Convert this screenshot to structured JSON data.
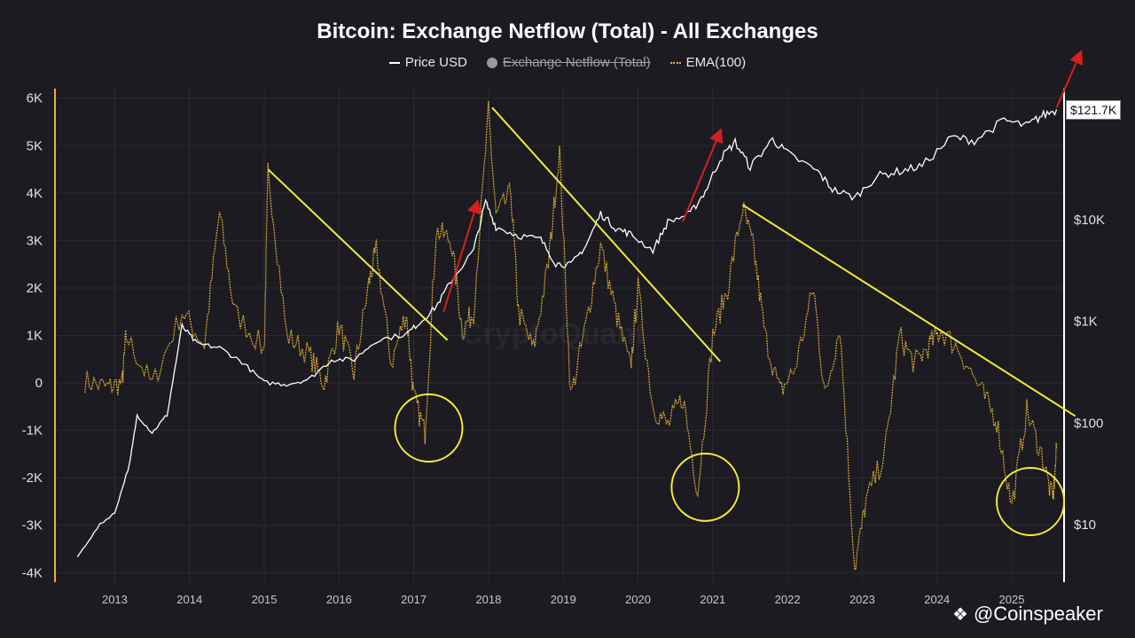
{
  "chart_data": {
    "type": "line",
    "title": "Bitcoin: Exchange Netflow (Total) - All Exchanges",
    "legend": [
      {
        "label": "Price USD",
        "style": "line",
        "color": "#ffffff",
        "hidden": false
      },
      {
        "label": "Exchange Netflow (Total)",
        "style": "dot",
        "color": "#9a9a9a",
        "hidden": true
      },
      {
        "label": "EMA(100)",
        "style": "dotted-line",
        "color": "#e2b33b",
        "hidden": false
      }
    ],
    "legend_position": "top-center",
    "x_axis": {
      "type": "date",
      "range": [
        2012.2,
        2025.7
      ],
      "ticks": [
        "2013",
        "2014",
        "2015",
        "2016",
        "2017",
        "2018",
        "2019",
        "2020",
        "2021",
        "2022",
        "2023",
        "2024",
        "2025"
      ]
    },
    "y_left": {
      "range": [
        -4200,
        6200
      ],
      "ticks": [
        "6K",
        "5K",
        "4K",
        "3K",
        "2K",
        "1K",
        "0",
        "-1K",
        "-2K",
        "-3K",
        "-4K"
      ],
      "tick_values": [
        6000,
        5000,
        4000,
        3000,
        2000,
        1000,
        0,
        -1000,
        -2000,
        -3000,
        -4000
      ]
    },
    "y_right": {
      "scale": "log",
      "ticks": [
        "$10K",
        "$1K",
        "$100",
        "$10"
      ],
      "tick_values": [
        10000,
        1000,
        100,
        10
      ]
    },
    "current_price_label": "$121.7K",
    "grid": true,
    "series": [
      {
        "name": "Price USD",
        "color": "#ffffff",
        "axis": "right",
        "points": [
          [
            2012.5,
            4.8
          ],
          [
            2012.8,
            10
          ],
          [
            2013.0,
            13
          ],
          [
            2013.2,
            40
          ],
          [
            2013.3,
            120
          ],
          [
            2013.5,
            80
          ],
          [
            2013.7,
            120
          ],
          [
            2013.9,
            900
          ],
          [
            2014.1,
            600
          ],
          [
            2014.4,
            550
          ],
          [
            2014.7,
            400
          ],
          [
            2015.0,
            250
          ],
          [
            2015.3,
            240
          ],
          [
            2015.6,
            270
          ],
          [
            2015.9,
            420
          ],
          [
            2016.2,
            420
          ],
          [
            2016.5,
            650
          ],
          [
            2016.9,
            750
          ],
          [
            2017.1,
            1000
          ],
          [
            2017.3,
            1400
          ],
          [
            2017.5,
            2500
          ],
          [
            2017.8,
            5000
          ],
          [
            2017.96,
            15000
          ],
          [
            2018.1,
            8500
          ],
          [
            2018.4,
            7000
          ],
          [
            2018.7,
            6400
          ],
          [
            2018.9,
            3700
          ],
          [
            2019.1,
            3600
          ],
          [
            2019.3,
            5500
          ],
          [
            2019.5,
            11500
          ],
          [
            2019.7,
            8300
          ],
          [
            2019.9,
            7200
          ],
          [
            2020.2,
            5000
          ],
          [
            2020.4,
            9500
          ],
          [
            2020.7,
            11500
          ],
          [
            2020.9,
            19000
          ],
          [
            2021.1,
            40000
          ],
          [
            2021.3,
            58000
          ],
          [
            2021.5,
            33000
          ],
          [
            2021.8,
            62000
          ],
          [
            2022.0,
            45000
          ],
          [
            2022.4,
            30000
          ],
          [
            2022.6,
            20000
          ],
          [
            2022.9,
            16500
          ],
          [
            2023.2,
            27000
          ],
          [
            2023.5,
            30000
          ],
          [
            2023.8,
            34000
          ],
          [
            2024.2,
            65000
          ],
          [
            2024.5,
            60000
          ],
          [
            2024.9,
            95000
          ],
          [
            2025.2,
            84000
          ],
          [
            2025.4,
            105000
          ],
          [
            2025.6,
            121700
          ]
        ]
      },
      {
        "name": "EMA(100)",
        "color": "#e2b33b",
        "axis": "left",
        "points": [
          [
            2012.6,
            50
          ],
          [
            2012.9,
            -100
          ],
          [
            2013.1,
            0
          ],
          [
            2013.15,
            1000
          ],
          [
            2013.5,
            -50
          ],
          [
            2013.9,
            1500
          ],
          [
            2014.2,
            800
          ],
          [
            2014.4,
            3600
          ],
          [
            2014.6,
            1500
          ],
          [
            2015.0,
            700
          ],
          [
            2015.05,
            4500
          ],
          [
            2015.3,
            1000
          ],
          [
            2015.6,
            600
          ],
          [
            2015.8,
            0
          ],
          [
            2016.0,
            1200
          ],
          [
            2016.2,
            200
          ],
          [
            2016.4,
            2100
          ],
          [
            2016.5,
            2800
          ],
          [
            2016.7,
            400
          ],
          [
            2016.9,
            1500
          ],
          [
            2017.0,
            -300
          ],
          [
            2017.15,
            -1050
          ],
          [
            2017.3,
            3200
          ],
          [
            2017.5,
            3000
          ],
          [
            2017.65,
            1100
          ],
          [
            2017.8,
            1500
          ],
          [
            2018.0,
            5700
          ],
          [
            2018.1,
            3500
          ],
          [
            2018.3,
            4000
          ],
          [
            2018.4,
            1500
          ],
          [
            2018.6,
            700
          ],
          [
            2018.8,
            2500
          ],
          [
            2018.95,
            4900
          ],
          [
            2019.1,
            -300
          ],
          [
            2019.3,
            1200
          ],
          [
            2019.5,
            2900
          ],
          [
            2019.7,
            1500
          ],
          [
            2019.9,
            300
          ],
          [
            2020.0,
            2000
          ],
          [
            2020.2,
            -500
          ],
          [
            2020.4,
            -900
          ],
          [
            2020.6,
            -300
          ],
          [
            2020.8,
            -2300
          ],
          [
            2021.0,
            1000
          ],
          [
            2021.2,
            2000
          ],
          [
            2021.4,
            3700
          ],
          [
            2021.55,
            2800
          ],
          [
            2021.7,
            1000
          ],
          [
            2021.9,
            -200
          ],
          [
            2022.1,
            300
          ],
          [
            2022.35,
            2000
          ],
          [
            2022.5,
            -300
          ],
          [
            2022.7,
            1200
          ],
          [
            2022.9,
            -3900
          ],
          [
            2023.05,
            -2500
          ],
          [
            2023.3,
            -1500
          ],
          [
            2023.5,
            1000
          ],
          [
            2023.7,
            400
          ],
          [
            2023.9,
            800
          ],
          [
            2024.05,
            1100
          ],
          [
            2024.3,
            700
          ],
          [
            2024.6,
            -200
          ],
          [
            2024.8,
            -800
          ],
          [
            2025.0,
            -2600
          ],
          [
            2025.2,
            -600
          ],
          [
            2025.4,
            -1500
          ],
          [
            2025.55,
            -2500
          ],
          [
            2025.6,
            -1400
          ]
        ]
      }
    ],
    "annotations": {
      "trendlines": [
        {
          "color": "#f2ea3a",
          "from": [
            2015.05,
            4500
          ],
          "to": [
            2017.45,
            900
          ]
        },
        {
          "color": "#f2ea3a",
          "from": [
            2018.05,
            5800
          ],
          "to": [
            2021.1,
            450
          ]
        },
        {
          "color": "#f2ea3a",
          "from": [
            2021.4,
            3750
          ],
          "to": [
            2025.85,
            -700
          ]
        }
      ],
      "circles": [
        {
          "color": "#f2ea3a",
          "center": [
            2017.2,
            -950
          ]
        },
        {
          "color": "#f2ea3a",
          "center": [
            2020.9,
            -2200
          ]
        },
        {
          "color": "#f2ea3a",
          "center": [
            2025.25,
            -2500
          ]
        }
      ],
      "arrows": [
        {
          "color": "#d62020",
          "from": [
            2017.4,
            1500
          ],
          "to": [
            2017.85,
            3800
          ]
        },
        {
          "color": "#d62020",
          "from": [
            2020.6,
            3400
          ],
          "to": [
            2021.1,
            5300
          ]
        },
        {
          "color": "#d62020",
          "from": [
            2025.6,
            5800
          ],
          "to": [
            2025.92,
            6950
          ]
        }
      ]
    }
  },
  "watermark": {
    "brand": "@Coinspeaker",
    "icon": "binance-diamond-icon",
    "background_text": "CryptoQuant"
  }
}
